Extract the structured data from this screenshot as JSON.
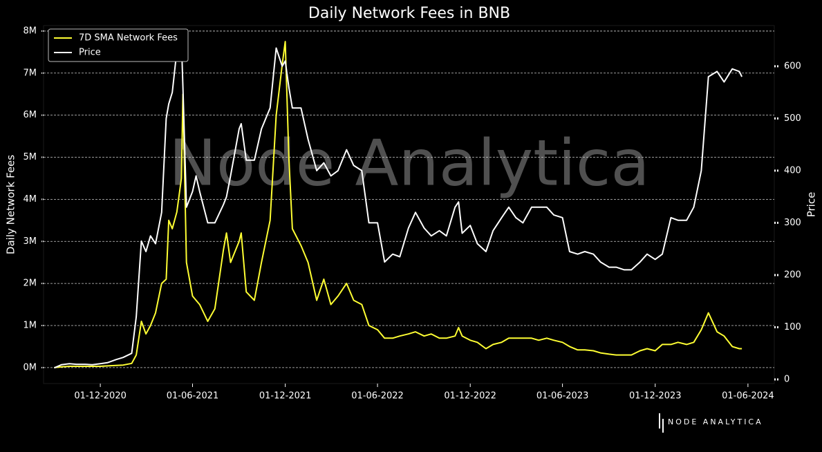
{
  "chart_data": {
    "type": "line",
    "title": "Daily Network Fees in BNB",
    "y_label": "Daily Network Fees",
    "y2_label": "Price",
    "watermark": "Node Analytica",
    "logo": "NODE ANALYTICA",
    "grid": true,
    "legend": "upper left",
    "x": [
      "2020-09-01",
      "2020-09-15",
      "2020-10-01",
      "2020-10-15",
      "2020-11-01",
      "2020-11-15",
      "2020-12-01",
      "2020-12-15",
      "2021-01-01",
      "2021-01-15",
      "2021-02-01",
      "2021-02-10",
      "2021-02-20",
      "2021-03-01",
      "2021-03-10",
      "2021-03-20",
      "2021-04-01",
      "2021-04-10",
      "2021-04-15",
      "2021-04-22",
      "2021-05-01",
      "2021-05-10",
      "2021-05-13",
      "2021-05-20",
      "2021-06-01",
      "2021-06-08",
      "2021-06-15",
      "2021-07-01",
      "2021-07-15",
      "2021-08-01",
      "2021-08-07",
      "2021-08-15",
      "2021-09-01",
      "2021-09-05",
      "2021-09-15",
      "2021-10-01",
      "2021-10-15",
      "2021-11-01",
      "2021-11-13",
      "2021-11-25",
      "2021-12-01",
      "2021-12-08",
      "2021-12-15",
      "2022-01-01",
      "2022-01-15",
      "2022-02-01",
      "2022-02-15",
      "2022-03-01",
      "2022-03-15",
      "2022-04-01",
      "2022-04-15",
      "2022-05-01",
      "2022-05-15",
      "2022-06-01",
      "2022-06-15",
      "2022-07-01",
      "2022-07-15",
      "2022-08-01",
      "2022-08-15",
      "2022-09-01",
      "2022-09-15",
      "2022-10-01",
      "2022-10-15",
      "2022-11-01",
      "2022-11-08",
      "2022-11-15",
      "2022-12-01",
      "2022-12-15",
      "2023-01-01",
      "2023-01-15",
      "2023-02-01",
      "2023-02-15",
      "2023-03-01",
      "2023-03-15",
      "2023-04-01",
      "2023-04-15",
      "2023-05-01",
      "2023-05-15",
      "2023-06-01",
      "2023-06-15",
      "2023-07-01",
      "2023-07-15",
      "2023-08-01",
      "2023-08-15",
      "2023-09-01",
      "2023-09-15",
      "2023-10-01",
      "2023-10-15",
      "2023-11-01",
      "2023-11-15",
      "2023-12-01",
      "2023-12-15",
      "2024-01-01",
      "2024-01-15",
      "2024-02-01",
      "2024-02-15",
      "2024-03-01",
      "2024-03-15",
      "2024-04-01",
      "2024-04-15",
      "2024-05-01",
      "2024-05-15",
      "2024-05-20"
    ],
    "series": [
      {
        "name": "7D SMA Network Fees",
        "color": "#ffff33",
        "values": [
          0,
          20000,
          30000,
          30000,
          30000,
          30000,
          30000,
          40000,
          50000,
          60000,
          100000,
          300000,
          1100000,
          800000,
          1000000,
          1300000,
          2000000,
          2100000,
          3500000,
          3300000,
          3700000,
          4500000,
          6500000,
          2500000,
          1700000,
          1600000,
          1500000,
          1100000,
          1400000,
          2800000,
          3200000,
          2500000,
          3000000,
          3200000,
          1800000,
          1600000,
          2500000,
          3500000,
          6000000,
          7200000,
          7750000,
          5000000,
          3300000,
          2900000,
          2500000,
          1600000,
          2100000,
          1500000,
          1700000,
          2000000,
          1600000,
          1500000,
          1000000,
          900000,
          700000,
          700000,
          750000,
          800000,
          850000,
          750000,
          800000,
          700000,
          700000,
          750000,
          950000,
          750000,
          650000,
          600000,
          450000,
          550000,
          600000,
          700000,
          700000,
          700000,
          700000,
          650000,
          700000,
          650000,
          600000,
          500000,
          420000,
          420000,
          400000,
          350000,
          320000,
          300000,
          300000,
          300000,
          400000,
          450000,
          400000,
          550000,
          550000,
          600000,
          550000,
          600000,
          900000,
          1300000,
          850000,
          750000,
          500000,
          450000,
          450000
        ]
      },
      {
        "name": "Price",
        "color": "#ffffff",
        "axis": "y2",
        "values": [
          22,
          28,
          30,
          29,
          29,
          28,
          30,
          32,
          38,
          42,
          50,
          120,
          265,
          245,
          275,
          260,
          320,
          500,
          528,
          550,
          630,
          650,
          560,
          330,
          360,
          390,
          360,
          300,
          300,
          335,
          350,
          390,
          480,
          490,
          420,
          420,
          480,
          520,
          635,
          600,
          610,
          560,
          520,
          520,
          460,
          400,
          415,
          390,
          400,
          440,
          410,
          400,
          300,
          300,
          225,
          240,
          235,
          290,
          320,
          290,
          275,
          285,
          275,
          330,
          340,
          280,
          295,
          260,
          245,
          285,
          310,
          330,
          310,
          300,
          330,
          330,
          330,
          315,
          310,
          245,
          240,
          245,
          240,
          225,
          215,
          215,
          210,
          210,
          225,
          240,
          230,
          240,
          310,
          305,
          305,
          330,
          400,
          580,
          590,
          570,
          595,
          590,
          580
        ]
      }
    ],
    "xlim": [
      "2020-08-11",
      "2024-07-23"
    ],
    "xticks": [
      {
        "value": "2020-12-01",
        "label": "01-12-2020"
      },
      {
        "value": "2021-06-01",
        "label": "01-06-2021"
      },
      {
        "value": "2021-12-01",
        "label": "01-12-2021"
      },
      {
        "value": "2022-06-01",
        "label": "01-06-2022"
      },
      {
        "value": "2022-12-01",
        "label": "01-12-2022"
      },
      {
        "value": "2023-06-01",
        "label": "01-06-2023"
      },
      {
        "value": "2023-12-01",
        "label": "01-12-2023"
      },
      {
        "value": "2024-06-01",
        "label": "01-06-2024"
      }
    ],
    "ylim": [
      -380000,
      8130000
    ],
    "yticks": [
      {
        "value": 0,
        "label": "0M"
      },
      {
        "value": 1000000,
        "label": "1M"
      },
      {
        "value": 2000000,
        "label": "2M"
      },
      {
        "value": 3000000,
        "label": "3M"
      },
      {
        "value": 4000000,
        "label": "4M"
      },
      {
        "value": 5000000,
        "label": "5M"
      },
      {
        "value": 6000000,
        "label": "6M"
      },
      {
        "value": 7000000,
        "label": "7M"
      },
      {
        "value": 8000000,
        "label": "8M"
      }
    ],
    "y2lim": [
      -8,
      678
    ],
    "y2ticks": [
      0,
      100,
      200,
      300,
      400,
      500,
      600
    ]
  }
}
